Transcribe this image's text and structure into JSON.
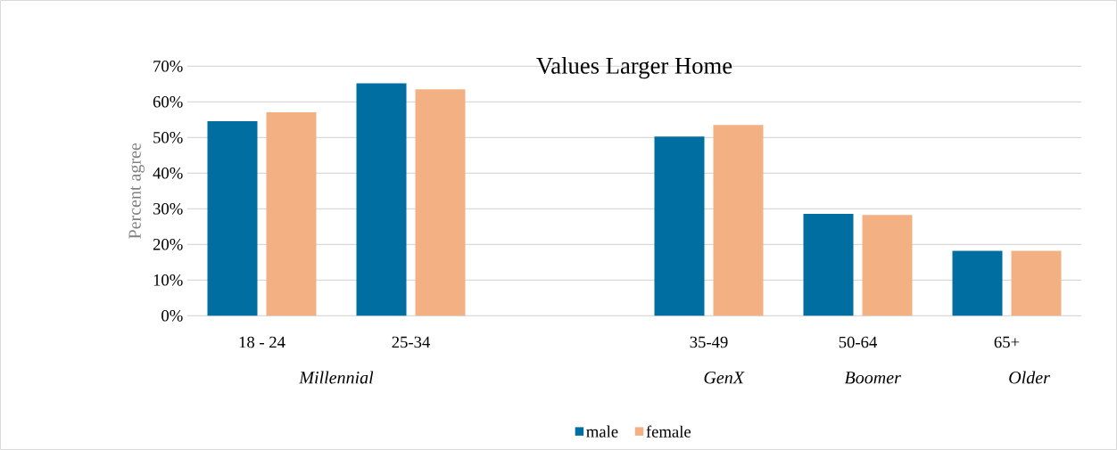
{
  "chart_data": {
    "type": "bar",
    "title": "Values Larger Home",
    "ylabel": "Percent agree",
    "categories": [
      "18 - 24",
      "25-34",
      null,
      "35-49",
      "50-64",
      "65+"
    ],
    "series": [
      {
        "name": "male",
        "color": "#006ea1",
        "values": [
          54.6,
          65.2,
          null,
          50.3,
          28.6,
          18.2
        ]
      },
      {
        "name": "female",
        "color": "#f3b083",
        "values": [
          57.1,
          63.5,
          null,
          53.5,
          28.3,
          18.2
        ]
      }
    ],
    "ylim": [
      0,
      70
    ],
    "yticks": [
      {
        "value": 0,
        "label": "0%"
      },
      {
        "value": 10,
        "label": "10%"
      },
      {
        "value": 20,
        "label": "20%"
      },
      {
        "value": 30,
        "label": "30%"
      },
      {
        "value": 40,
        "label": "40%"
      },
      {
        "value": 50,
        "label": "50%"
      },
      {
        "value": 60,
        "label": "60%"
      },
      {
        "value": 70,
        "label": "70%"
      }
    ],
    "annotations": [
      "Millennial",
      "GenX",
      "Boomer",
      "Older"
    ],
    "grid": "y",
    "legend": "bottom"
  }
}
